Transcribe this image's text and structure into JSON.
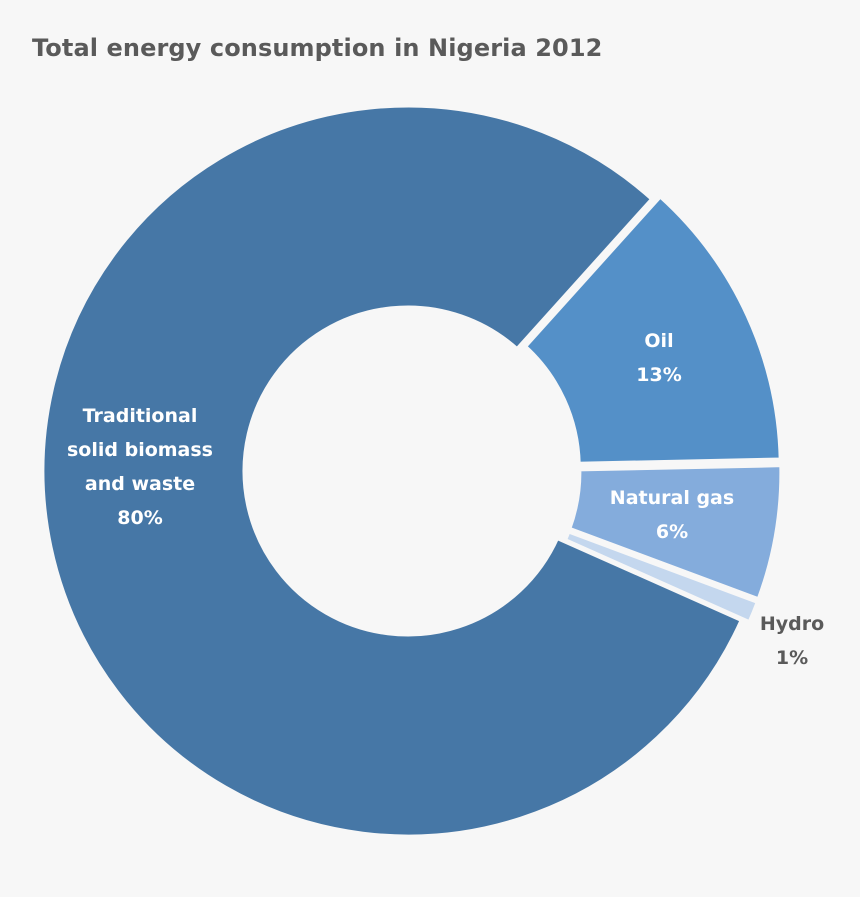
{
  "chart_data": {
    "type": "pie",
    "variant": "donut",
    "title": "Total energy consumption in Nigeria 2012",
    "slices": [
      {
        "name": "Traditional solid biomass and waste",
        "label_lines": [
          "Traditional",
          "solid biomass",
          "and waste"
        ],
        "value": 80,
        "value_label": "80%",
        "color": "#4677a6",
        "label_color": "#ffffff"
      },
      {
        "name": "Oil",
        "label_lines": [
          "Oil"
        ],
        "value": 13,
        "value_label": "13%",
        "color": "#5490c8",
        "label_color": "#ffffff"
      },
      {
        "name": "Natural gas",
        "label_lines": [
          "Natural gas"
        ],
        "value": 6,
        "value_label": "6%",
        "color": "#84acdc",
        "label_color": "#ffffff"
      },
      {
        "name": "Hydro",
        "label_lines": [
          "Hydro"
        ],
        "value": 1,
        "value_label": "1%",
        "color": "#c4d7ee",
        "label_color": "#5a5a5a"
      }
    ]
  }
}
